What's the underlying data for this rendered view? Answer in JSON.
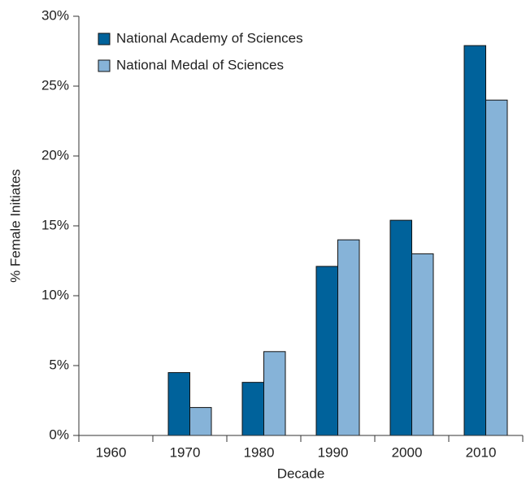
{
  "chart_data": {
    "type": "bar",
    "x_label": "Decade",
    "y_label": "% Female Initiates",
    "categories": [
      "1960",
      "1970",
      "1980",
      "1990",
      "2000",
      "2010"
    ],
    "series": [
      {
        "name": "National Academy of Sciences",
        "color": "#00629b",
        "values": [
          0,
          4.5,
          3.8,
          12.1,
          15.4,
          27.9
        ]
      },
      {
        "name": "National Medal of Sciences",
        "color": "#86b3d8",
        "values": [
          0,
          2.0,
          6.0,
          14.0,
          13.0,
          24.0
        ]
      }
    ],
    "ylim": [
      0,
      30
    ],
    "yticks": [
      {
        "value": 0,
        "label": "0%"
      },
      {
        "value": 5,
        "label": "5%"
      },
      {
        "value": 10,
        "label": "10%"
      },
      {
        "value": 15,
        "label": "15%"
      },
      {
        "value": 20,
        "label": "20%"
      },
      {
        "value": 25,
        "label": "25%"
      },
      {
        "value": 30,
        "label": "30%"
      }
    ],
    "legend": "upper left"
  }
}
